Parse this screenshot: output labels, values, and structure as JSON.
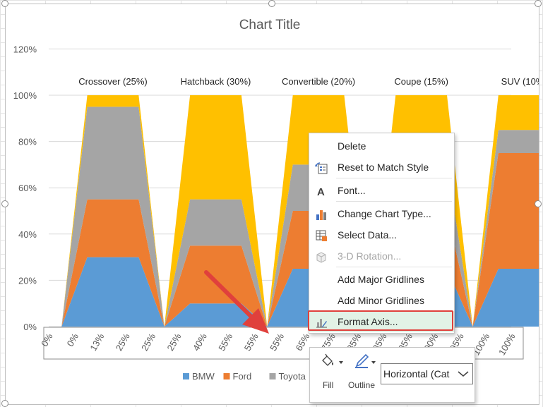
{
  "chart_data": {
    "type": "area",
    "title": "Chart Title",
    "yticks": [
      "0%",
      "20%",
      "40%",
      "60%",
      "80%",
      "100%",
      "120%"
    ],
    "ylim": [
      0,
      1.2
    ],
    "xticks": [
      "0%",
      "0%",
      "13%",
      "25%",
      "25%",
      "25%",
      "40%",
      "55%",
      "55%",
      "55%",
      "65%",
      "75%",
      "85%",
      "85%",
      "85%",
      "90%",
      "95%",
      "100%",
      "100%"
    ],
    "categories": [
      {
        "label": "Crossover (25%)"
      },
      {
        "label": "Hatchback (30%)"
      },
      {
        "label": "Convertible (20%)"
      },
      {
        "label": "Coupe (15%)"
      },
      {
        "label": "SUV (10%)"
      }
    ],
    "series": [
      {
        "name": "BMW",
        "color": "#5b9bd5",
        "values": [
          0.3,
          0.1,
          0.25,
          0.25,
          0.25
        ]
      },
      {
        "name": "Ford",
        "color": "#ed7d31",
        "values": [
          0.25,
          0.25,
          0.25,
          0.25,
          0.5
        ]
      },
      {
        "name": "Toyota",
        "color": "#a5a5a5",
        "values": [
          0.4,
          0.2,
          0.2,
          0.2,
          0.1
        ]
      },
      {
        "name": "",
        "color": "#ffc000",
        "values": [
          0.05,
          0.45,
          0.3,
          0.3,
          0.15
        ]
      }
    ],
    "legend_position": "bottom",
    "grid": true
  },
  "context_menu": {
    "items": [
      {
        "label": "Delete",
        "icon": "none",
        "enabled": true
      },
      {
        "label": "Reset to Match Style",
        "icon": "reset-style-icon",
        "enabled": true
      },
      {
        "label": "Font...",
        "icon": "font-icon",
        "enabled": true
      },
      {
        "label": "Change Chart Type...",
        "icon": "chart-type-icon",
        "enabled": true
      },
      {
        "label": "Select Data...",
        "icon": "select-data-icon",
        "enabled": true
      },
      {
        "label": "3-D Rotation...",
        "icon": "rotation-3d-icon",
        "enabled": false
      },
      {
        "label": "Add Major Gridlines",
        "icon": "none",
        "enabled": true
      },
      {
        "label": "Add Minor Gridlines",
        "icon": "none",
        "enabled": true
      },
      {
        "label": "Format Axis...",
        "icon": "format-axis-icon",
        "enabled": true,
        "highlighted": true
      }
    ]
  },
  "mini_toolbar": {
    "fill_label": "Fill",
    "outline_label": "Outline",
    "element_selector": "Horizontal (Cat"
  },
  "colors": {
    "annotation_arrow": "#e0403c",
    "highlight": "#e0403c"
  }
}
